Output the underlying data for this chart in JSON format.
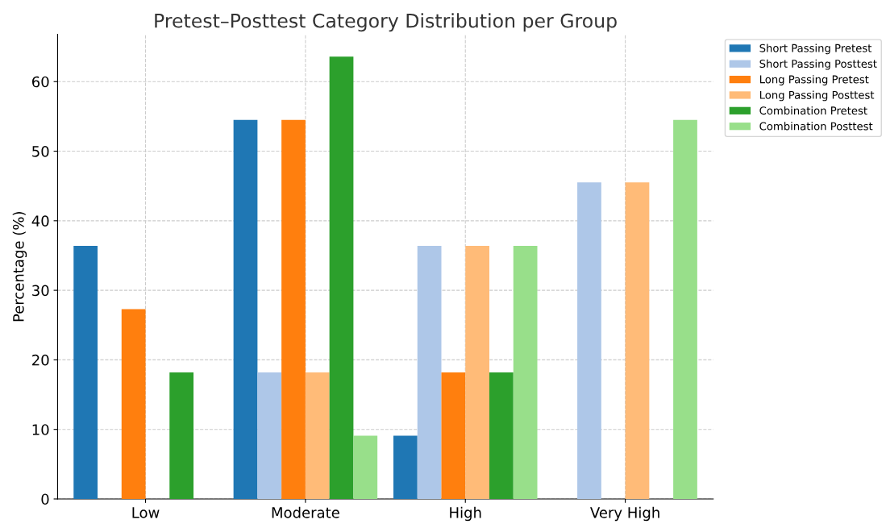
{
  "chart_data": {
    "type": "bar",
    "title": "Pretest–Posttest Category Distribution per Group",
    "ylabel": "Percentage (%)",
    "categories": [
      "Low",
      "Moderate",
      "High",
      "Very High"
    ],
    "series": [
      {
        "name": "Short Passing Pretest",
        "color": "#1f77b4",
        "values": [
          36.4,
          54.5,
          9.1,
          0
        ]
      },
      {
        "name": "Short Passing Posttest",
        "color": "#aec7e8",
        "values": [
          0,
          18.2,
          36.4,
          45.5
        ]
      },
      {
        "name": "Long Passing Pretest",
        "color": "#ff7f0e",
        "values": [
          27.3,
          54.5,
          18.2,
          0
        ]
      },
      {
        "name": "Long Passing Posttest",
        "color": "#ffbb78",
        "values": [
          0,
          18.2,
          36.4,
          45.5
        ]
      },
      {
        "name": "Combination Pretest",
        "color": "#2ca02c",
        "values": [
          18.2,
          63.6,
          18.2,
          0
        ]
      },
      {
        "name": "Combination Posttest",
        "color": "#98df8a",
        "values": [
          0,
          9.1,
          36.4,
          54.5
        ]
      }
    ],
    "ylim": [
      0,
      66.8
    ],
    "yticks": [
      0,
      10,
      20,
      30,
      40,
      50,
      60
    ],
    "grid": true,
    "legend": "top right"
  }
}
